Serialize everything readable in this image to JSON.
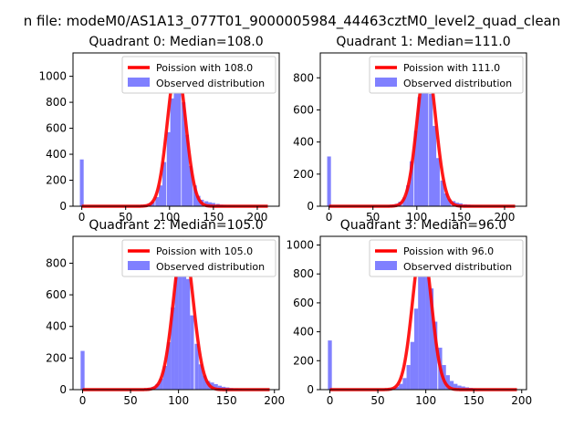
{
  "figure_title": "n file: modeM0/AS1A13_077T01_9000005984_44463cztM0_level2_quad_clean",
  "colors": {
    "bars": "#8080ff",
    "poisson": "#ff0000",
    "axis": "#000000"
  },
  "chart_data": [
    {
      "type": "bar",
      "title": "Quadrant 0: Median=108.0",
      "xlim": [
        -10,
        225
      ],
      "ylim": [
        0,
        1180
      ],
      "xticks": [
        0,
        50,
        100,
        150,
        200
      ],
      "xtick_labels": [
        "0",
        "50",
        "100",
        "150",
        "200"
      ],
      "yticks": [
        0,
        200,
        400,
        600,
        800,
        1000
      ],
      "ytick_labels": [
        "0",
        "200",
        "400",
        "600",
        "800",
        "1000"
      ],
      "bin_width": 4.3,
      "bins": [
        [
          0,
          360
        ],
        [
          64,
          5
        ],
        [
          69,
          8
        ],
        [
          73,
          12
        ],
        [
          77,
          20
        ],
        [
          81,
          35
        ],
        [
          86,
          70
        ],
        [
          90,
          160
        ],
        [
          94,
          340
        ],
        [
          99,
          570
        ],
        [
          103,
          830
        ],
        [
          107,
          1000
        ],
        [
          111,
          980
        ],
        [
          116,
          800
        ],
        [
          120,
          550
        ],
        [
          124,
          310
        ],
        [
          129,
          160
        ],
        [
          133,
          80
        ],
        [
          137,
          50
        ],
        [
          142,
          38
        ],
        [
          146,
          30
        ],
        [
          150,
          25
        ],
        [
          155,
          18
        ],
        [
          159,
          12
        ],
        [
          163,
          10
        ],
        [
          168,
          6
        ],
        [
          172,
          5
        ],
        [
          176,
          4
        ]
      ],
      "poisson_mean": 108.0,
      "poisson_peak": 1080,
      "poisson_xrange": [
        0,
        212
      ],
      "legend": {
        "position": "upper right",
        "entries": [
          "Poission with 108.0",
          "Observed distribution"
        ]
      }
    },
    {
      "type": "bar",
      "title": "Quadrant 1: Median=111.0",
      "xlim": [
        -10,
        225
      ],
      "ylim": [
        0,
        955
      ],
      "xticks": [
        0,
        50,
        100,
        150,
        200
      ],
      "xtick_labels": [
        "0",
        "50",
        "100",
        "150",
        "200"
      ],
      "yticks": [
        0,
        200,
        400,
        600,
        800
      ],
      "ytick_labels": [
        "0",
        "200",
        "400",
        "600",
        "800"
      ],
      "bin_width": 4.3,
      "bins": [
        [
          0,
          310
        ],
        [
          64,
          3
        ],
        [
          69,
          6
        ],
        [
          73,
          10
        ],
        [
          77,
          15
        ],
        [
          81,
          28
        ],
        [
          86,
          55
        ],
        [
          90,
          130
        ],
        [
          94,
          280
        ],
        [
          99,
          470
        ],
        [
          103,
          680
        ],
        [
          107,
          800
        ],
        [
          111,
          850
        ],
        [
          116,
          700
        ],
        [
          120,
          500
        ],
        [
          124,
          300
        ],
        [
          129,
          160
        ],
        [
          133,
          80
        ],
        [
          137,
          45
        ],
        [
          142,
          32
        ],
        [
          146,
          22
        ],
        [
          150,
          18
        ],
        [
          155,
          12
        ],
        [
          159,
          10
        ],
        [
          163,
          8
        ],
        [
          168,
          5
        ],
        [
          172,
          4
        ],
        [
          176,
          3
        ]
      ],
      "poisson_mean": 111.0,
      "poisson_peak": 900,
      "poisson_xrange": [
        0,
        212
      ],
      "legend": {
        "position": "upper right",
        "entries": [
          "Poission with 111.0",
          "Observed distribution"
        ]
      }
    },
    {
      "type": "bar",
      "title": "Quadrant 2: Median=105.0",
      "xlim": [
        -10,
        205
      ],
      "ylim": [
        0,
        970
      ],
      "xticks": [
        0,
        50,
        100,
        150,
        200
      ],
      "xtick_labels": [
        "0",
        "50",
        "100",
        "150",
        "200"
      ],
      "yticks": [
        0,
        200,
        400,
        600,
        800
      ],
      "ytick_labels": [
        "0",
        "200",
        "400",
        "600",
        "800"
      ],
      "bin_width": 4.1,
      "bins": [
        [
          0,
          245
        ],
        [
          62,
          5
        ],
        [
          66,
          8
        ],
        [
          70,
          12
        ],
        [
          74,
          18
        ],
        [
          78,
          35
        ],
        [
          82,
          70
        ],
        [
          86,
          150
        ],
        [
          90,
          300
        ],
        [
          94,
          520
        ],
        [
          98,
          720
        ],
        [
          102,
          880
        ],
        [
          106,
          860
        ],
        [
          110,
          700
        ],
        [
          114,
          470
        ],
        [
          119,
          290
        ],
        [
          123,
          160
        ],
        [
          127,
          90
        ],
        [
          131,
          55
        ],
        [
          135,
          45
        ],
        [
          139,
          35
        ],
        [
          143,
          25
        ],
        [
          147,
          18
        ],
        [
          151,
          14
        ],
        [
          155,
          10
        ],
        [
          160,
          8
        ],
        [
          164,
          5
        ],
        [
          168,
          3
        ]
      ],
      "poisson_mean": 105.0,
      "poisson_peak": 940,
      "poisson_xrange": [
        0,
        195
      ],
      "legend": {
        "position": "upper right",
        "entries": [
          "Poission with 105.0",
          "Observed distribution"
        ]
      }
    },
    {
      "type": "bar",
      "title": "Quadrant 3: Median=96.0",
      "xlim": [
        -10,
        205
      ],
      "ylim": [
        0,
        1060
      ],
      "xticks": [
        0,
        50,
        100,
        150,
        200
      ],
      "xtick_labels": [
        "0",
        "50",
        "100",
        "150",
        "200"
      ],
      "yticks": [
        0,
        200,
        400,
        600,
        800,
        1000
      ],
      "ytick_labels": [
        "0",
        "200",
        "400",
        "600",
        "800",
        "1000"
      ],
      "bin_width": 4.1,
      "bins": [
        [
          0,
          340
        ],
        [
          58,
          5
        ],
        [
          62,
          8
        ],
        [
          66,
          12
        ],
        [
          70,
          20
        ],
        [
          74,
          40
        ],
        [
          78,
          80
        ],
        [
          82,
          170
        ],
        [
          86,
          330
        ],
        [
          90,
          560
        ],
        [
          94,
          780
        ],
        [
          98,
          900
        ],
        [
          102,
          870
        ],
        [
          106,
          700
        ],
        [
          110,
          470
        ],
        [
          115,
          290
        ],
        [
          119,
          170
        ],
        [
          123,
          100
        ],
        [
          127,
          60
        ],
        [
          131,
          40
        ],
        [
          135,
          28
        ],
        [
          139,
          22
        ],
        [
          143,
          16
        ],
        [
          147,
          12
        ],
        [
          151,
          9
        ],
        [
          156,
          6
        ],
        [
          160,
          4
        ],
        [
          164,
          3
        ]
      ],
      "poisson_mean": 96.0,
      "poisson_peak": 1010,
      "poisson_xrange": [
        0,
        195
      ],
      "legend": {
        "position": "upper right",
        "entries": [
          "Poission with 96.0",
          "Observed distribution"
        ]
      }
    }
  ]
}
